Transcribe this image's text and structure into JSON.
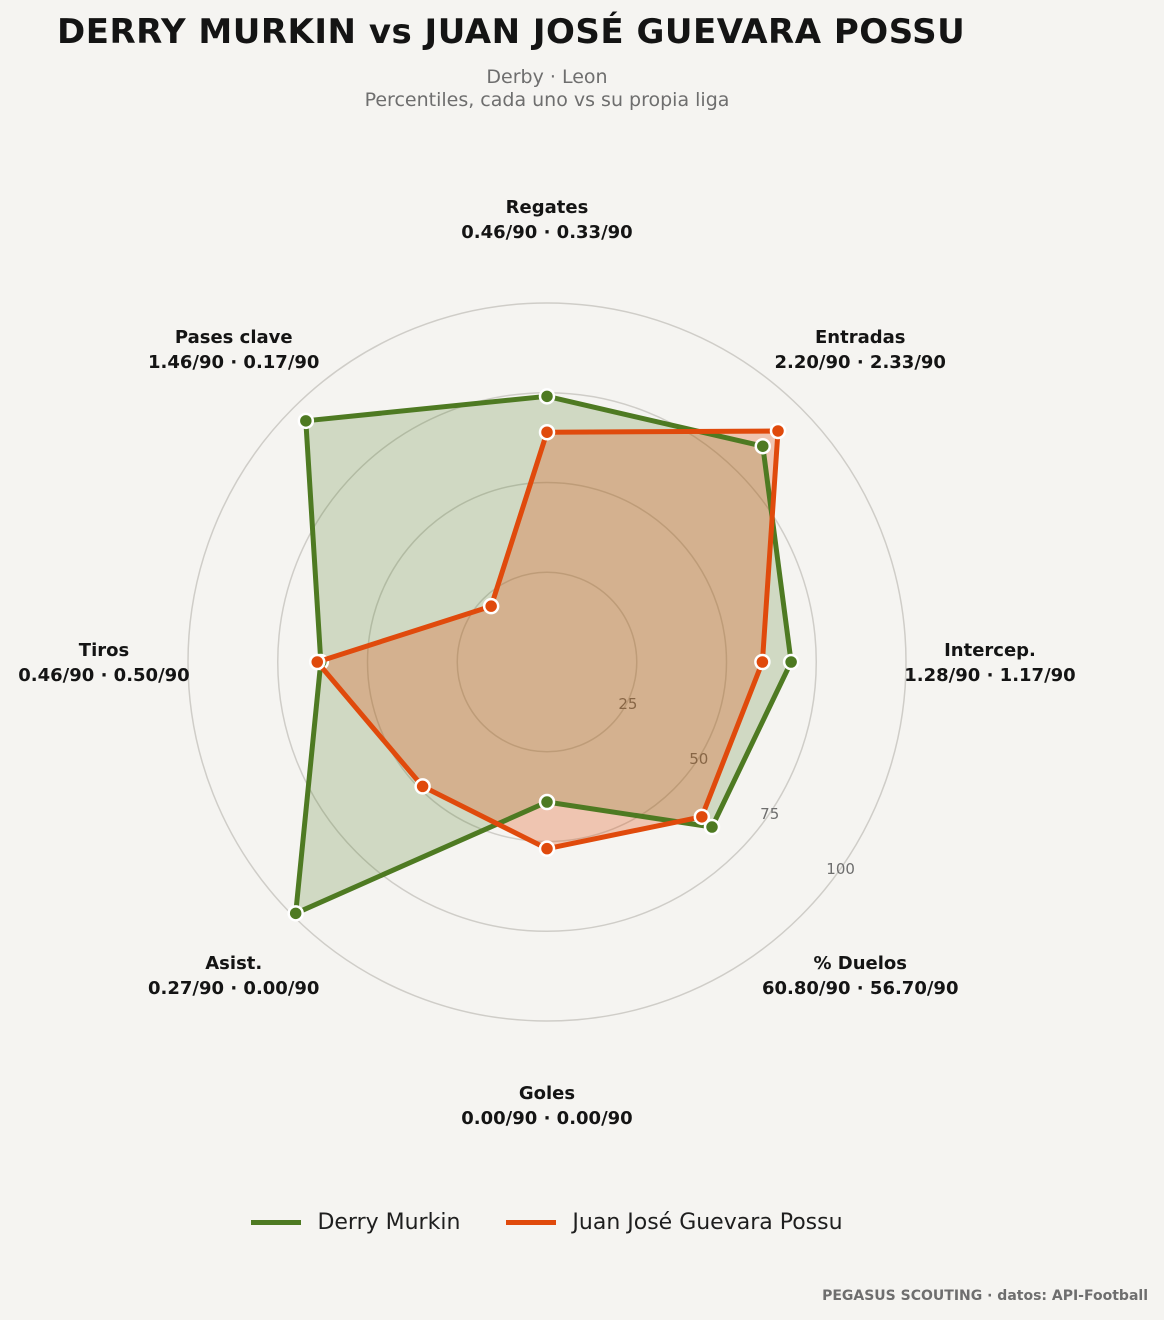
{
  "header": {
    "title": "DERRY MURKIN  vs  JUAN JOSÉ GUEVARA POSSU",
    "subtitle_line1": "Derby · Leon",
    "subtitle_line2": "Percentiles, cada uno vs su propia liga"
  },
  "footer": {
    "credit": "PEGASUS SCOUTING · datos: API-Football"
  },
  "colors": {
    "background": "#f5f4f1",
    "series_1": "#4e7a22",
    "series_2": "#e04a0c",
    "grid": "#cfcdc8"
  },
  "chart_data": {
    "type": "radar",
    "rlim": [
      0,
      100
    ],
    "ticks": [
      25,
      50,
      75,
      100
    ],
    "grid": true,
    "legend_position": "bottom",
    "axes": [
      {
        "name": "Regates",
        "values_text": "0.46/90 · 0.33/90"
      },
      {
        "name": "Entradas",
        "values_text": "2.20/90 · 2.33/90"
      },
      {
        "name": "Intercep.",
        "values_text": "1.28/90 · 1.17/90"
      },
      {
        "name": "% Duelos",
        "values_text": "60.80/90 · 56.70/90"
      },
      {
        "name": "Goles",
        "values_text": "0.00/90 · 0.00/90"
      },
      {
        "name": "Asist.",
        "values_text": "0.27/90 · 0.00/90"
      },
      {
        "name": "Tiros",
        "values_text": "0.46/90 · 0.50/90"
      },
      {
        "name": "Pases clave",
        "values_text": "1.46/90 · 0.17/90"
      }
    ],
    "series": [
      {
        "name": "Derry Murkin",
        "color": "#4e7a22",
        "values": [
          74,
          85,
          68,
          65,
          39,
          99,
          63,
          95
        ]
      },
      {
        "name": "Juan José Guevara Possu",
        "color": "#e04a0c",
        "values": [
          64,
          91,
          60,
          61,
          52,
          49,
          64,
          22
        ]
      }
    ]
  }
}
